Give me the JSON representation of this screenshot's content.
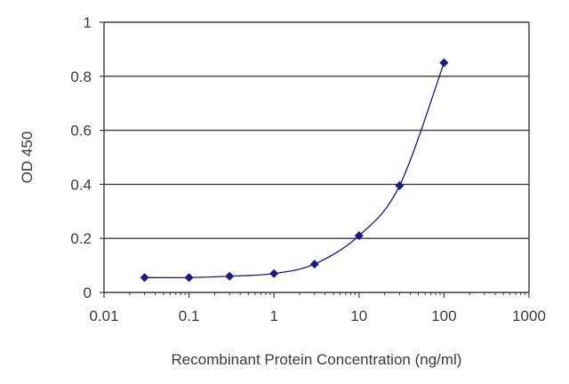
{
  "chart_data": {
    "type": "line",
    "title": "",
    "xlabel": "Recombinant Protein Concentration (ng/ml)",
    "ylabel": "OD 450",
    "x_scale": "log",
    "xlim": [
      0.01,
      1000
    ],
    "ylim": [
      0,
      1
    ],
    "x_ticks": [
      {
        "value": 0.01,
        "label": "0.01"
      },
      {
        "value": 0.1,
        "label": "0.1"
      },
      {
        "value": 1,
        "label": "1"
      },
      {
        "value": 10,
        "label": "10"
      },
      {
        "value": 100,
        "label": "100"
      },
      {
        "value": 1000,
        "label": "1000"
      }
    ],
    "y_ticks": [
      {
        "value": 0,
        "label": "0"
      },
      {
        "value": 0.2,
        "label": "0.2"
      },
      {
        "value": 0.4,
        "label": "0.4"
      },
      {
        "value": 0.6,
        "label": "0.6"
      },
      {
        "value": 0.8,
        "label": "0.8"
      },
      {
        "value": 1,
        "label": "1"
      }
    ],
    "grid": "horizontal",
    "series": [
      {
        "color": "#1a1a8c",
        "marker": "diamond",
        "points": [
          {
            "x": 0.03,
            "y": 0.055
          },
          {
            "x": 0.1,
            "y": 0.055
          },
          {
            "x": 0.3,
            "y": 0.06
          },
          {
            "x": 1,
            "y": 0.07
          },
          {
            "x": 3,
            "y": 0.105
          },
          {
            "x": 10,
            "y": 0.21
          },
          {
            "x": 30,
            "y": 0.395
          },
          {
            "x": 100,
            "y": 0.85
          }
        ]
      }
    ]
  }
}
